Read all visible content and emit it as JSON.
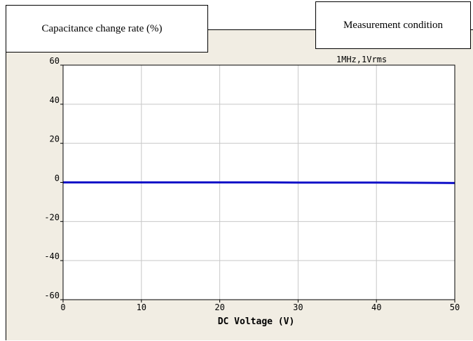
{
  "labels": {
    "y_axis_box": "Capacitance change rate (%)",
    "condition_box": "Measurement condition"
  },
  "colors": {
    "panel_background": "#f1ede3",
    "plot_background": "#ffffff",
    "grid": "#c8c8c8",
    "series": "#1010c8"
  },
  "chart_data": {
    "type": "line",
    "title": "",
    "annotation": "1MHz,1Vrms",
    "xlabel": "DC Voltage (V)",
    "ylabel": "Capacitance change rate (%)",
    "xlim": [
      0,
      50
    ],
    "ylim": [
      -60,
      60
    ],
    "xticks": [
      0,
      10,
      20,
      30,
      40,
      50
    ],
    "yticks": [
      60,
      40,
      20,
      0,
      -20,
      -40,
      -60
    ],
    "grid": true,
    "series": [
      {
        "x": [
          0,
          5,
          10,
          15,
          20,
          25,
          30,
          35,
          40,
          45,
          50
        ],
        "y": [
          0,
          0,
          0,
          0,
          0,
          0,
          -0.1,
          -0.1,
          -0.1,
          -0.2,
          -0.3
        ]
      }
    ]
  }
}
